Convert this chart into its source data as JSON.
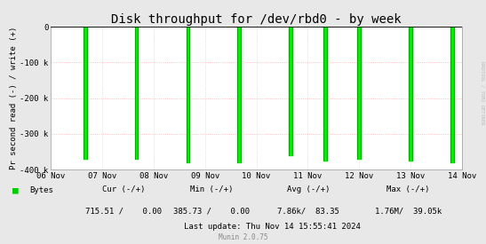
{
  "title": "Disk throughput for /dev/rbd0 - by week",
  "ylabel": "Pr second read (-) / write (+)",
  "background_color": "#e8e8e8",
  "plot_bg_color": "#ffffff",
  "hgrid_color": "#ff9999",
  "vgrid_color": "#cccccc",
  "line_color": "#00ee00",
  "line_color_dark": "#007700",
  "ylim": [
    -400000,
    0
  ],
  "ytick_labels": [
    "0",
    "-100 k",
    "-200 k",
    "-300 k",
    "-400 k"
  ],
  "ytick_values": [
    0,
    -100000,
    -200000,
    -300000,
    -400000
  ],
  "xtick_labels": [
    "06 Nov",
    "07 Nov",
    "08 Nov",
    "09 Nov",
    "10 Nov",
    "11 Nov",
    "12 Nov",
    "13 Nov",
    "14 Nov"
  ],
  "spike_positions": [
    0.083,
    0.208,
    0.333,
    0.458,
    0.583,
    0.668,
    0.75,
    0.875,
    0.977
  ],
  "spike_depths": [
    -370000,
    -370000,
    -380000,
    -380000,
    -360000,
    -375000,
    -370000,
    -375000,
    -380000
  ],
  "watermark": "RRDTOOL / TOBI OETIKER",
  "legend_label": "Bytes",
  "legend_color": "#00cc00",
  "cur_label": "Cur (-/+)",
  "cur_value": "715.51 /    0.00",
  "min_label": "Min (-/+)",
  "min_value": "385.73 /    0.00",
  "avg_label": "Avg (-/+)",
  "avg_value": "7.86k/  83.35",
  "max_label": "Max (-/+)",
  "max_value": "1.76M/  39.05k",
  "last_update": "Last update: Thu Nov 14 15:55:41 2024",
  "munin_label": "Munin 2.0.75",
  "title_fontsize": 10,
  "axis_fontsize": 6.5,
  "tick_fontsize": 6.5,
  "legend_fontsize": 6.5,
  "small_fontsize": 5.5
}
